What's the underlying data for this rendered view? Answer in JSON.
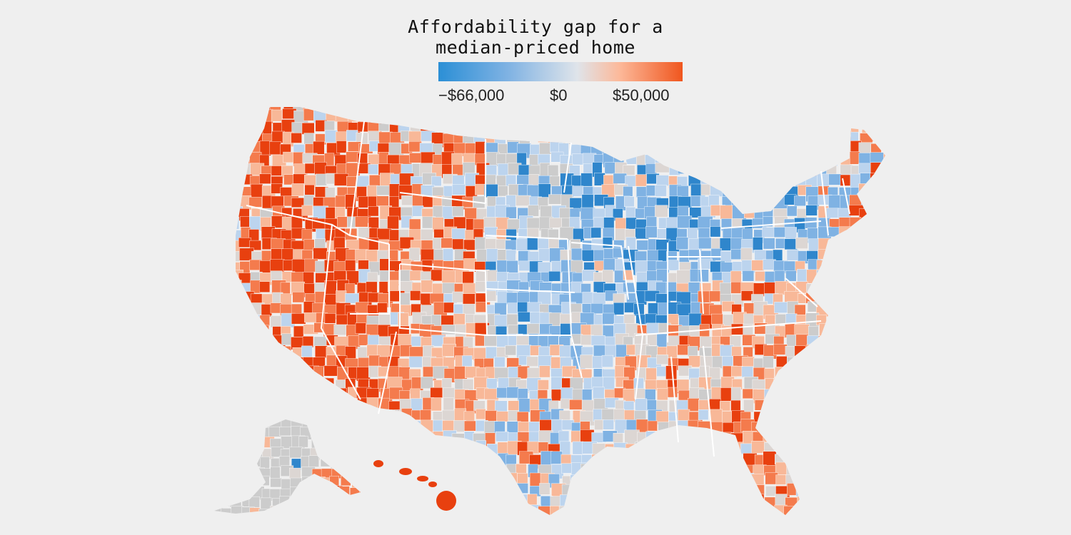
{
  "map": {
    "title_line_1": "Affordability gap for a",
    "title_line_2": "median-priced home",
    "legend": {
      "min_label": "−$66,000",
      "mid_label": "$0",
      "max_label": "$50,000",
      "min_value": -66000,
      "mid_value": 0,
      "max_value": 50000,
      "stops": [
        {
          "value": -66000,
          "color": "#2b8fd6"
        },
        {
          "value": -33000,
          "color": "#7fb2e3"
        },
        {
          "value": 0,
          "color": "#dfe4ea"
        },
        {
          "value": 20000,
          "color": "#fcb99a"
        },
        {
          "value": 50000,
          "color": "#f0561e"
        }
      ]
    },
    "colors": {
      "background": "#efefef",
      "no_data": "#cccccc",
      "state_border": "#ffffff",
      "strong_negative": "#2f86cc",
      "negative": "#7fb2e3",
      "light_negative": "#bcd4ee",
      "neutral": "#dcd6d3",
      "light_positive": "#f8b898",
      "positive": "#f47b4d",
      "strong_positive": "#e8400f"
    }
  }
}
